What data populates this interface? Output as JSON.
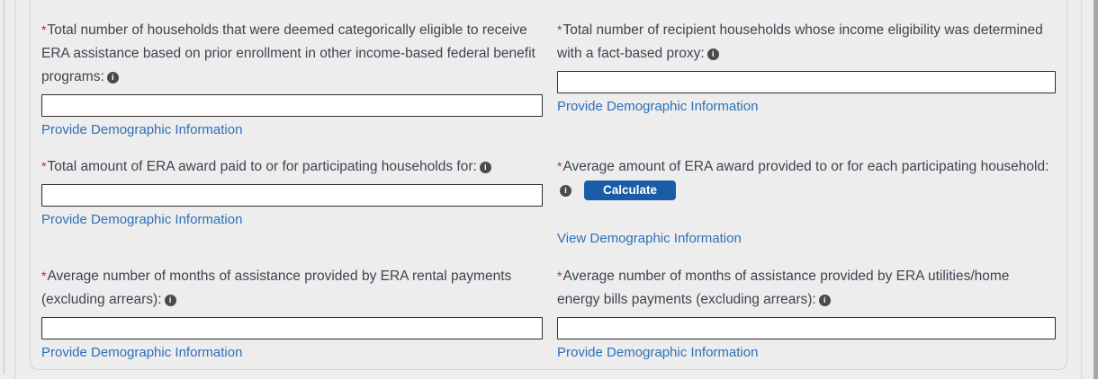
{
  "icons": {
    "info_glyph": "i"
  },
  "colors": {
    "link": "#2e70b8",
    "button_bg": "#1a5ca8",
    "required_marker": "#c3262c",
    "label_text": "#3d4551",
    "page_background": "#ededed"
  },
  "fields": [
    {
      "id": "households-categorically-eligible",
      "required_marker": "*",
      "label": "Total number of households that were deemed categorically eligible to receive ERA assistance based on prior enrollment in other income-based federal benefit programs:",
      "value": "",
      "placeholder": "",
      "link_label": "Provide Demographic Information"
    },
    {
      "id": "households-fact-based-proxy",
      "required_marker": "*",
      "label": "Total number of recipient households whose income eligibility was determined with a fact-based proxy:",
      "value": "",
      "placeholder": "",
      "link_label": "Provide Demographic Information"
    },
    {
      "id": "total-era-award-paid",
      "required_marker": "*",
      "label": "Total amount of ERA award paid to or for participating households for:",
      "value": "",
      "placeholder": "",
      "link_label": "Provide Demographic Information"
    },
    {
      "id": "average-era-award-per-household",
      "required_marker": "*",
      "label": "Average amount of ERA award provided to or for each participating household:",
      "button_label": "Calculate",
      "link_label": "View Demographic Information"
    },
    {
      "id": "avg-months-rental-payments",
      "required_marker": "*",
      "label": "Average number of months of assistance provided by ERA rental payments (excluding arrears):",
      "value": "",
      "placeholder": "",
      "link_label": "Provide Demographic Information"
    },
    {
      "id": "avg-months-utilities-payments",
      "required_marker": "*",
      "label": "Average number of months of assistance provided by ERA utilities/home energy bills payments (excluding arrears):",
      "value": "",
      "placeholder": "",
      "link_label": "Provide Demographic Information"
    }
  ]
}
